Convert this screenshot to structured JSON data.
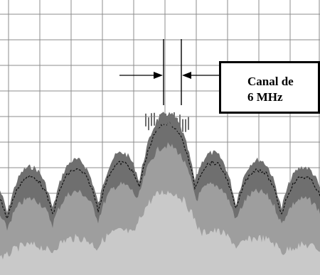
{
  "annotation": {
    "line1": "Canal de",
    "line2": "6 MHz"
  },
  "colors": {
    "grid": "#8c8c8c",
    "outer_spectrum": "#6f6f6f",
    "mid_spectrum": "#9e9e9e",
    "inner_spectrum": "#c9c9c9",
    "trace": "#111111",
    "background": "#ffffff"
  }
}
